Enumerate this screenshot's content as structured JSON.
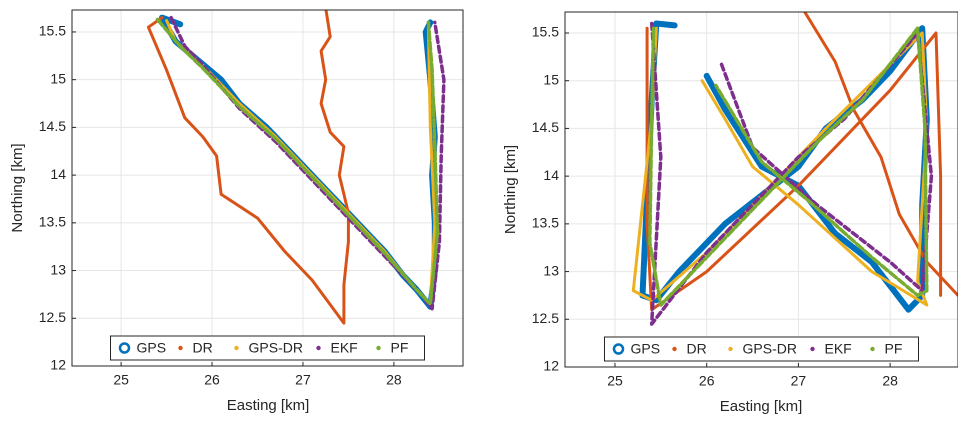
{
  "chart_data": [
    {
      "type": "line",
      "xlabel": "Easting [km]",
      "ylabel": "Northing [km]",
      "xlim": [
        24.46,
        28.76
      ],
      "ylim": [
        12,
        15.73
      ],
      "xticks": [
        25,
        26,
        27,
        28
      ],
      "yticks": [
        12,
        12.5,
        13,
        13.5,
        14,
        14.5,
        15,
        15.5
      ],
      "grid": true,
      "legend": "lower center",
      "series": [
        {
          "name": "GPS",
          "color": "#0072bd",
          "x": [
            25.65,
            25.45,
            25.6,
            25.85,
            26.1,
            26.3,
            26.6,
            26.9,
            27.2,
            27.4,
            27.6,
            27.9,
            28.1,
            28.25,
            28.4,
            28.45,
            28.45,
            28.42,
            28.45,
            28.4,
            28.35,
            28.4
          ],
          "values": [
            15.58,
            15.65,
            15.4,
            15.2,
            15.0,
            14.75,
            14.5,
            14.2,
            13.9,
            13.7,
            13.5,
            13.2,
            12.95,
            12.8,
            12.62,
            13.0,
            13.5,
            14.0,
            14.4,
            15.0,
            15.5,
            15.6
          ]
        },
        {
          "name": "DR",
          "color": "#d95319",
          "x": [
            27.25,
            27.3,
            27.2,
            27.25,
            27.2,
            27.3,
            27.45,
            27.4,
            27.45,
            27.5,
            27.5,
            27.45,
            27.45,
            27.1,
            26.8,
            26.5,
            26.1,
            26.05,
            25.9,
            25.7,
            25.5,
            25.3,
            25.45
          ],
          "values": [
            15.75,
            15.45,
            15.3,
            15.0,
            14.75,
            14.45,
            14.3,
            14.0,
            13.8,
            13.6,
            13.3,
            12.85,
            12.45,
            12.9,
            13.2,
            13.55,
            13.8,
            14.2,
            14.4,
            14.6,
            15.1,
            15.55,
            15.65
          ]
        },
        {
          "name": "GPS-DR",
          "color": "#edb120",
          "x": [
            25.5,
            25.6,
            25.9,
            26.3,
            26.7,
            27.1,
            27.5,
            27.9,
            28.2,
            28.4,
            28.45,
            28.4,
            28.38
          ],
          "values": [
            15.62,
            15.4,
            15.15,
            14.75,
            14.4,
            14.0,
            13.6,
            13.2,
            12.85,
            12.65,
            13.5,
            14.5,
            15.55
          ]
        },
        {
          "name": "EKF",
          "color": "#7e2f8e",
          "x": [
            25.55,
            25.7,
            25.9,
            26.3,
            26.7,
            27.1,
            27.5,
            27.95,
            28.3,
            28.42,
            28.5,
            28.52,
            28.55,
            28.45
          ],
          "values": [
            15.65,
            15.35,
            15.15,
            14.7,
            14.35,
            13.95,
            13.55,
            13.1,
            12.75,
            12.6,
            13.3,
            14.2,
            15.0,
            15.6
          ]
        },
        {
          "name": "PF",
          "color": "#77ac30",
          "x": [
            25.4,
            25.65,
            25.9,
            26.3,
            26.7,
            27.1,
            27.5,
            27.9,
            28.25,
            28.4,
            28.48,
            28.45,
            28.42,
            28.38
          ],
          "values": [
            15.63,
            15.35,
            15.12,
            14.72,
            14.38,
            13.98,
            13.58,
            13.18,
            12.8,
            12.65,
            13.4,
            14.3,
            15.1,
            15.6
          ]
        }
      ]
    },
    {
      "type": "line",
      "xlabel": "Easting [km]",
      "ylabel": "Northing [km]",
      "xlim": [
        24.455,
        28.74
      ],
      "ylim": [
        12,
        15.72
      ],
      "xticks": [
        25,
        26,
        27,
        28
      ],
      "yticks": [
        12,
        12.5,
        13,
        13.5,
        14,
        14.5,
        15,
        15.5
      ],
      "grid": true,
      "legend": "lower center",
      "series": [
        {
          "name": "GPS",
          "color": "#0072bd",
          "x": [
            25.65,
            25.45,
            25.4,
            25.35,
            25.3,
            25.45,
            25.7,
            26.2,
            26.6,
            27.0,
            27.3,
            27.7,
            28.0,
            28.35,
            28.4,
            28.35,
            28.35,
            28.2,
            27.8,
            27.4,
            27.0,
            26.6,
            26.4,
            26.2,
            26.0
          ],
          "values": [
            15.58,
            15.6,
            14.8,
            13.8,
            12.75,
            12.7,
            13.0,
            13.5,
            13.8,
            14.1,
            14.5,
            14.8,
            15.1,
            15.55,
            14.6,
            13.7,
            12.75,
            12.6,
            13.1,
            13.4,
            13.9,
            14.1,
            14.4,
            14.7,
            15.05
          ]
        },
        {
          "name": "DR",
          "color": "#d95319",
          "x": [
            25.35,
            25.35,
            25.4,
            26.0,
            27.0,
            28.0,
            28.5,
            28.55,
            28.55,
            null,
            27.05,
            27.4,
            27.6,
            27.9,
            28.1,
            28.4,
            28.74
          ],
          "values": [
            15.55,
            13.5,
            12.6,
            13.0,
            13.9,
            14.9,
            15.5,
            14.0,
            12.75,
            null,
            15.75,
            15.2,
            14.7,
            14.2,
            13.6,
            13.1,
            12.75
          ]
        },
        {
          "name": "GPS-DR",
          "color": "#edb120",
          "x": [
            25.45,
            25.4,
            25.2,
            25.4,
            26.0,
            26.6,
            27.3,
            28.35,
            28.4,
            28.3,
            28.4,
            27.8,
            27.0,
            26.5,
            26.2,
            25.95
          ],
          "values": [
            15.55,
            14.6,
            12.8,
            12.7,
            13.2,
            13.8,
            14.5,
            15.5,
            14.5,
            12.9,
            12.65,
            13.0,
            13.7,
            14.1,
            14.6,
            15.0
          ]
        },
        {
          "name": "EKF",
          "color": "#7e2f8e",
          "x": [
            25.4,
            25.5,
            25.4,
            26.0,
            27.0,
            27.5,
            28.3,
            28.45,
            28.35,
            28.0,
            27.2,
            26.5,
            26.15
          ],
          "values": [
            15.6,
            14.2,
            12.45,
            13.2,
            14.2,
            14.6,
            15.5,
            14.0,
            12.8,
            13.1,
            13.7,
            14.3,
            15.2
          ]
        },
        {
          "name": "PF",
          "color": "#77ac30",
          "x": [
            25.42,
            25.4,
            25.38,
            25.5,
            26.0,
            26.6,
            27.2,
            27.7,
            28.3,
            28.38,
            28.4,
            28.3,
            27.8,
            27.1,
            26.6,
            26.1
          ],
          "values": [
            15.55,
            14.6,
            13.3,
            12.65,
            13.15,
            13.75,
            14.35,
            14.8,
            15.55,
            14.5,
            12.8,
            12.75,
            13.15,
            13.75,
            14.15,
            14.95
          ]
        }
      ]
    }
  ]
}
